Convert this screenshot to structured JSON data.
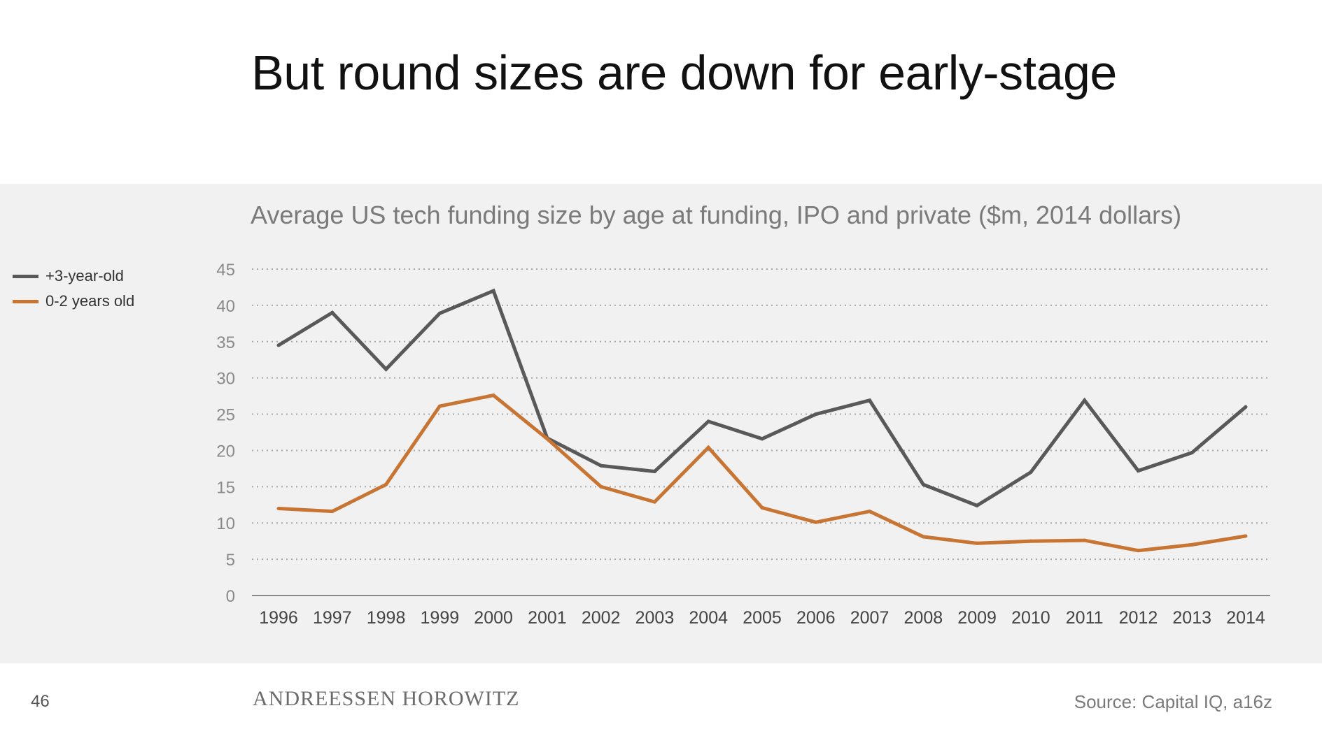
{
  "slide": {
    "title": "But round sizes are down for early-stage",
    "page_number": "46",
    "logo_text": "ANDREESSEN HOROWITZ",
    "source": "Source: Capital IQ, a16z"
  },
  "chart_data": {
    "type": "line",
    "title": "Average US tech funding size by age at funding, IPO and private ($m, 2014 dollars)",
    "xlabel": "",
    "ylabel": "",
    "x": [
      "1996",
      "1997",
      "1998",
      "1999",
      "2000",
      "2001",
      "2002",
      "2003",
      "2004",
      "2005",
      "2006",
      "2007",
      "2008",
      "2009",
      "2010",
      "2011",
      "2012",
      "2013",
      "2014"
    ],
    "ylim": [
      0,
      45
    ],
    "yticks": [
      0,
      5,
      10,
      15,
      20,
      25,
      30,
      35,
      40,
      45
    ],
    "grid": "horizontal-dotted",
    "legend_position": "left",
    "series": [
      {
        "name": "+3-year-old",
        "color": "#595959",
        "values": [
          34.5,
          39.0,
          31.2,
          38.9,
          42.0,
          21.7,
          17.9,
          17.1,
          24.0,
          21.6,
          25.0,
          26.9,
          15.3,
          12.4,
          17.0,
          26.9,
          17.2,
          19.7,
          26.0
        ]
      },
      {
        "name": "0-2 years old",
        "color": "#c87533",
        "values": [
          12.0,
          11.6,
          15.3,
          26.1,
          27.6,
          21.6,
          15.0,
          12.9,
          20.4,
          12.1,
          10.1,
          11.6,
          8.1,
          7.2,
          7.5,
          7.6,
          6.2,
          7.0,
          8.2
        ]
      }
    ]
  }
}
